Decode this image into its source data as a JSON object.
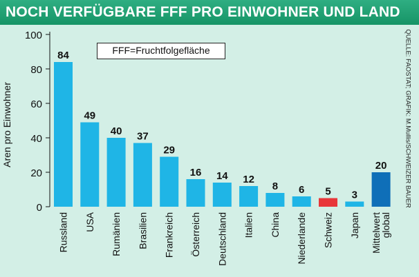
{
  "title": "NOCH VERFÜGBARE FFF PRO EINWOHNER UND LAND",
  "legend_note": "FFF=Fruchtfolgefläche",
  "source": "QUELLE: FAOSTAT; GRAFIK: M.Mullis/SCHWEIZER BAUER",
  "colors": {
    "default_bar": "#1fb5e6",
    "highlight_bar": "#e8373a",
    "global_bar": "#0f6fb8",
    "background": "#d3efe6",
    "title_bar": "#1a9a6c"
  },
  "chart_data": {
    "type": "bar",
    "title": "NOCH VERFÜGBARE FFF PRO EINWOHNER UND LAND",
    "xlabel": "",
    "ylabel": "Aren pro Einwohner",
    "ylim": [
      0,
      100
    ],
    "yticks": [
      0,
      20,
      40,
      60,
      80,
      100
    ],
    "grid": false,
    "categories": [
      [
        "Russland"
      ],
      [
        "USA"
      ],
      [
        "Rumänien"
      ],
      [
        "Brasilien"
      ],
      [
        "Frankreich"
      ],
      [
        "Österreich"
      ],
      [
        "Deutschland"
      ],
      [
        "Italien"
      ],
      [
        "China"
      ],
      [
        "Niederlande"
      ],
      [
        "Schweiz"
      ],
      [
        "Japan"
      ],
      [
        "Mittelwert",
        "global"
      ]
    ],
    "values": [
      84,
      49,
      40,
      37,
      29,
      16,
      14,
      12,
      8,
      6,
      5,
      3,
      20
    ],
    "bar_roles": [
      "default",
      "default",
      "default",
      "default",
      "default",
      "default",
      "default",
      "default",
      "default",
      "default",
      "highlight",
      "default",
      "global"
    ]
  }
}
